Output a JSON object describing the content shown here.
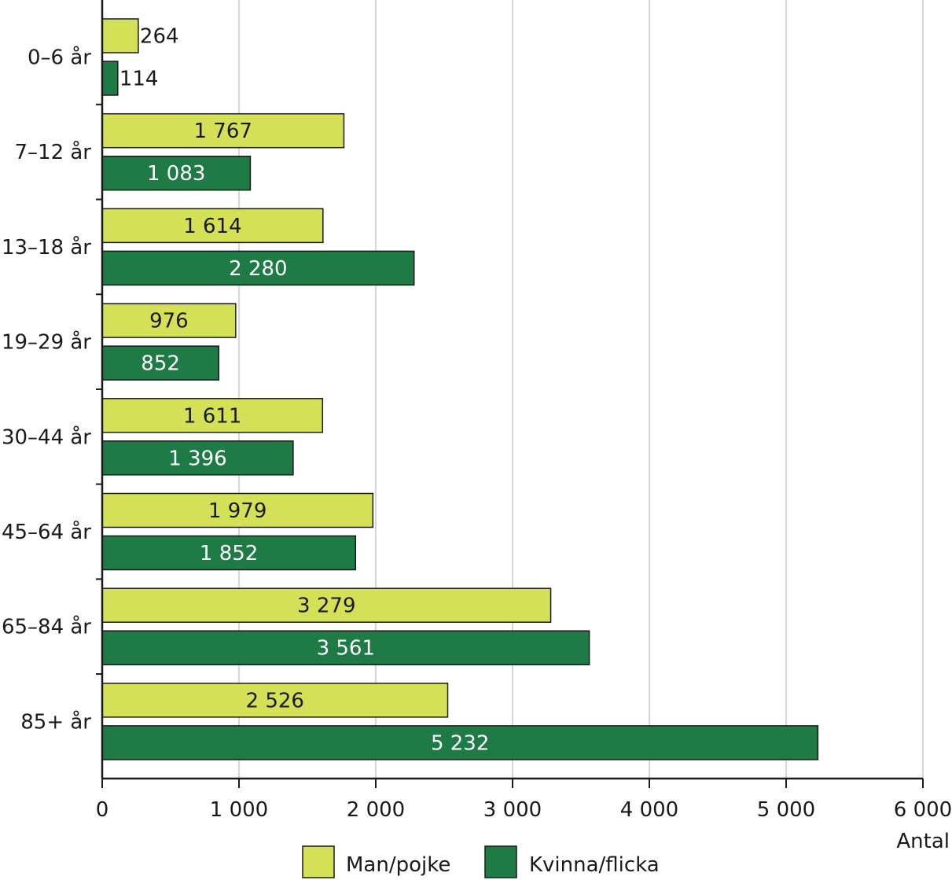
{
  "chart_data": {
    "type": "bar",
    "orientation": "horizontal",
    "categories": [
      "0–6 år",
      "7–12 år",
      "13–18 år",
      "19–29 år",
      "30–44 år",
      "45–64 år",
      "65–84 år",
      "85+ år"
    ],
    "series": [
      {
        "name": "Man/pojke",
        "color": "#d4e157",
        "values": [
          264,
          1767,
          1614,
          976,
          1611,
          1979,
          3279,
          2526
        ],
        "labels": [
          "264",
          "1 767",
          "1 614",
          "976",
          "1 611",
          "1 979",
          "3 279",
          "2 526"
        ]
      },
      {
        "name": "Kvinna/flicka",
        "color": "#1e7b45",
        "values": [
          114,
          1083,
          2280,
          852,
          1396,
          1852,
          3561,
          5232
        ],
        "labels": [
          "114",
          "1 083",
          "2 280",
          "852",
          "1 396",
          "1 852",
          "3 561",
          "5 232"
        ]
      }
    ],
    "xlim": [
      0,
      6000
    ],
    "xticks": [
      0,
      1000,
      2000,
      3000,
      4000,
      5000,
      6000
    ],
    "xtick_labels": [
      "0",
      "1 000",
      "2 000",
      "3 000",
      "4 000",
      "5 000",
      "6 000"
    ],
    "xlabel": "Antal",
    "ylabel": "",
    "title": "",
    "grid": true,
    "legend_position": "bottom-center"
  }
}
